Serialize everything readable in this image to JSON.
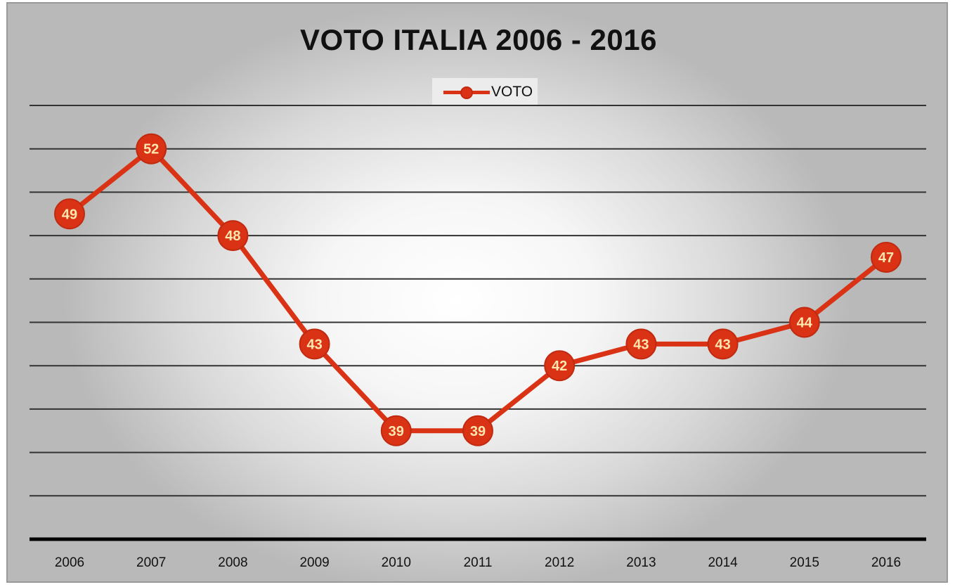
{
  "chart_data": {
    "type": "line",
    "title": "VOTO ITALIA 2006 - 2016",
    "xlabel": "",
    "ylabel": "",
    "categories": [
      "2006",
      "2007",
      "2008",
      "2009",
      "2010",
      "2011",
      "2012",
      "2013",
      "2014",
      "2015",
      "2016"
    ],
    "series": [
      {
        "name": "VOTO",
        "values": [
          49,
          52,
          48,
          43,
          39,
          39,
          42,
          43,
          43,
          44,
          47
        ]
      }
    ],
    "ylim": [
      34,
      54
    ],
    "ytick_step": 2,
    "grid": true,
    "y_tick_labels_shown": false,
    "data_labels": true,
    "legend": "top-center",
    "colors": {
      "series": "#d93214",
      "marker_edge": "#c02a10",
      "data_label_text": "#ffe7b0",
      "gridline": "#333333",
      "axis": "#000000"
    }
  }
}
